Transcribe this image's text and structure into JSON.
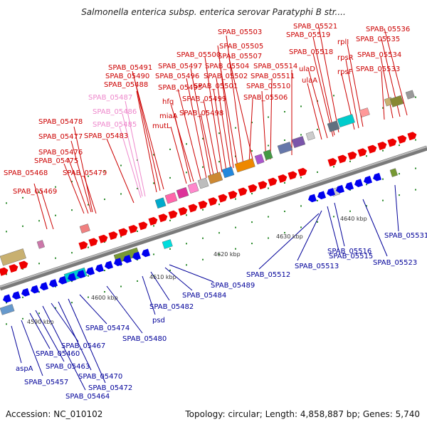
{
  "title": "Salmonella enterica subsp. enterica serovar Paratyphi B str....",
  "footer": {
    "accession": "Accession: NC_010102",
    "topology": "Topology: circular; Length: 4,858,887 bp; Genes: 5,740"
  },
  "scale_labels": [
    "4590 kbp",
    "4600 kbp",
    "4610 kbp",
    "4620 kbp",
    "4630 kbp",
    "4640 kbp"
  ],
  "colors": {
    "forward_label": "#cc0000",
    "forward_label_pseudo": "#ee88cc",
    "reverse_label": "#000099",
    "forward_gene": "#ee0000",
    "reverse_gene": "#0000ee"
  },
  "forward_labels": [
    "SPAB_05468",
    "SPAB_05469",
    "SPAB_05475",
    "SPAB_05476",
    "SPAB_05477",
    "SPAB_05478",
    "SPAB_05479",
    "SPAB_05483",
    "SPAB_05485",
    "SPAB_05486",
    "SPAB_05487",
    "SPAB_05488",
    "SPAB_05490",
    "SPAB_05491",
    "mutL",
    "miaA",
    "hfq",
    "SPAB_05495",
    "SPAB_05496",
    "SPAB_05497",
    "SPAB_05498",
    "SPAB_05499",
    "SPAB_05500",
    "SPAB_05501",
    "SPAB_05502",
    "SPAB_05503",
    "SPAB_05504",
    "SPAB_05505",
    "SPAB_05506",
    "SPAB_05507",
    "SPAB_05510",
    "SPAB_05511",
    "SPAB_05514",
    "ulaA",
    "ulaD",
    "SPAB_05518",
    "SPAB_05519",
    "SPAB_05521",
    "rpsF",
    "rpsR",
    "rplI",
    "SPAB_05533",
    "SPAB_05534",
    "SPAB_05535",
    "SPAB_05536"
  ],
  "reverse_labels": [
    "aspA",
    "SPAB_05457",
    "SPAB_05460",
    "SPAB_05463",
    "SPAB_05464",
    "SPAB_05467",
    "SPAB_05470",
    "SPAB_05472",
    "SPAB_05474",
    "SPAB_05480",
    "psd",
    "SPAB_05482",
    "SPAB_05484",
    "SPAB_05489",
    "SPAB_05512",
    "SPAB_05513",
    "SPAB_05515",
    "SPAB_05516",
    "SPAB_05523",
    "SPAB_05531"
  ]
}
